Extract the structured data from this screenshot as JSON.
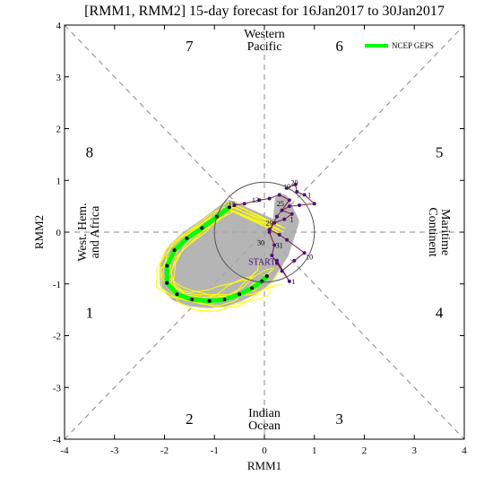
{
  "chart_data": {
    "type": "line",
    "title": "[RMM1, RMM2] 15-day forecast for 16Jan2017 to 30Jan2017",
    "xlabel": "RMM1",
    "ylabel": "RMM2",
    "xlim": [
      -4,
      4
    ],
    "ylim": [
      -4,
      4
    ],
    "x_ticks": [
      "-4",
      "-3",
      "-2",
      "-1",
      "0",
      "1",
      "2",
      "3",
      "4"
    ],
    "y_ticks": [
      "-4",
      "-3",
      "-2",
      "-1",
      "0",
      "1",
      "2",
      "3",
      "4"
    ],
    "phase_numbers": [
      {
        "label": "1",
        "x": -3.5,
        "y": -1.55
      },
      {
        "label": "2",
        "x": -1.5,
        "y": -3.6
      },
      {
        "label": "3",
        "x": 1.5,
        "y": -3.6
      },
      {
        "label": "4",
        "x": 3.5,
        "y": -1.55
      },
      {
        "label": "5",
        "x": 3.5,
        "y": 1.55
      },
      {
        "label": "6",
        "x": 1.5,
        "y": 3.6
      },
      {
        "label": "7",
        "x": -1.5,
        "y": 3.6
      },
      {
        "label": "8",
        "x": -3.5,
        "y": 1.55
      }
    ],
    "region_labels": {
      "top": [
        "Western",
        "Pacific"
      ],
      "bottom": [
        "Indian",
        "Ocean"
      ],
      "left": [
        "West. Hem.",
        "and Africa"
      ],
      "right": [
        "Maritime",
        "Continent"
      ]
    },
    "legend": {
      "label": "NCEP GEPS",
      "placement": "top-right",
      "color": "#00ff00"
    },
    "colors": {
      "ensemble": "#ffff00",
      "spread": "#a9a9a9",
      "mean": "#00ff00",
      "observed": "#8b1a2e",
      "observed_points": "#4b1080",
      "diagonal": "#888888",
      "circle": "#555555"
    },
    "observed": {
      "labels": [
        {
          "text": "19",
          "x": 0.45,
          "y": 0.88
        },
        {
          "text": "20",
          "x": 0.6,
          "y": 0.96
        },
        {
          "text": "13",
          "x": -0.18,
          "y": 0.62
        },
        {
          "text": "1",
          "x": 0.9,
          "y": 0.72
        },
        {
          "text": "25",
          "x": 0.32,
          "y": 0.55
        },
        {
          "text": "29",
          "x": 0.1,
          "y": 0.18
        },
        {
          "text": "30",
          "x": -0.07,
          "y": -0.2
        },
        {
          "text": "31",
          "x": 0.3,
          "y": -0.25
        },
        {
          "text": "10",
          "x": 0.9,
          "y": -0.48
        },
        {
          "text": "15",
          "x": -0.65,
          "y": 0.54
        },
        {
          "text": "1",
          "x": 0.58,
          "y": -0.95
        },
        {
          "text": "1",
          "x": 0.55,
          "y": 0.25
        }
      ],
      "start_label": "START",
      "start_x": -0.05,
      "start_y": -0.58,
      "path": [
        [
          0.45,
          0.85
        ],
        [
          0.62,
          0.92
        ],
        [
          0.65,
          0.78
        ],
        [
          0.8,
          0.72
        ],
        [
          1.0,
          0.55
        ],
        [
          0.7,
          0.52
        ],
        [
          0.5,
          0.5
        ],
        [
          0.35,
          0.42
        ],
        [
          0.55,
          0.35
        ],
        [
          0.4,
          0.25
        ],
        [
          0.2,
          0.18
        ],
        [
          0.1,
          0.05
        ],
        [
          0.3,
          -0.05
        ],
        [
          0.45,
          -0.15
        ],
        [
          0.8,
          -0.4
        ],
        [
          0.6,
          -0.55
        ],
        [
          0.35,
          -0.75
        ],
        [
          0.25,
          -0.55
        ],
        [
          0.5,
          -0.95
        ],
        [
          0.25,
          -0.6
        ],
        [
          0.15,
          -0.45
        ],
        [
          0.2,
          -0.25
        ],
        [
          0.1,
          0.0
        ],
        [
          0.25,
          0.3
        ],
        [
          0.5,
          0.62
        ],
        [
          0.3,
          0.72
        ],
        [
          0.1,
          0.65
        ],
        [
          -0.1,
          0.62
        ],
        [
          -0.4,
          0.55
        ],
        [
          -0.6,
          0.52
        ]
      ]
    },
    "mean_forecast": [
      [
        -0.7,
        0.48
      ],
      [
        -0.95,
        0.3
      ],
      [
        -1.25,
        0.08
      ],
      [
        -1.55,
        -0.12
      ],
      [
        -1.8,
        -0.35
      ],
      [
        -1.95,
        -0.65
      ],
      [
        -1.95,
        -0.98
      ],
      [
        -1.75,
        -1.2
      ],
      [
        -1.45,
        -1.3
      ],
      [
        -1.1,
        -1.33
      ],
      [
        -0.8,
        -1.3
      ],
      [
        -0.5,
        -1.2
      ],
      [
        -0.25,
        -1.08
      ],
      [
        -0.05,
        -0.95
      ],
      [
        0.05,
        -0.85
      ]
    ]
  }
}
